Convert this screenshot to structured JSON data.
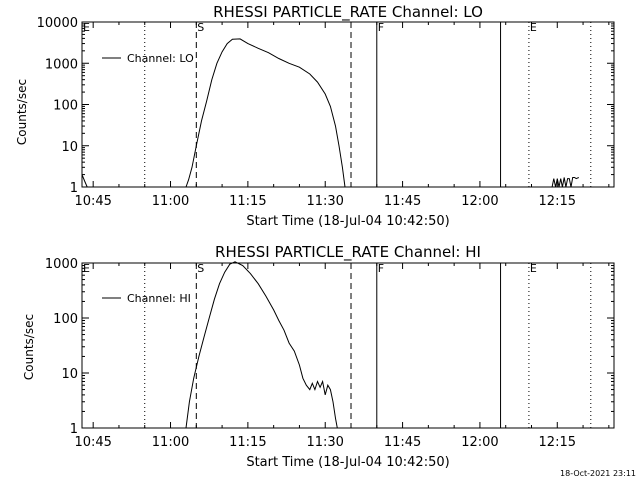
{
  "footer": {
    "timestamp": "18-Oct-2021 23:11"
  },
  "colors": {
    "background": "#ffffff",
    "foreground": "#000000"
  },
  "chart_data": [
    {
      "type": "line",
      "title": "RHESSI PARTICLE_RATE Channel: LO",
      "xlabel": "Start Time (18-Jul-04 10:42:50)",
      "ylabel": "Counts/sec",
      "yscale": "log",
      "ylim": [
        1,
        10000
      ],
      "xlim": [
        "10:42:50",
        "12:26:00"
      ],
      "x_ticks": [
        "10:45",
        "11:00",
        "11:15",
        "11:30",
        "11:45",
        "12:00",
        "12:15"
      ],
      "y_ticks": [
        "1",
        "10",
        "100",
        "1000",
        "10000"
      ],
      "legend": {
        "position": "top-left",
        "entries": [
          "Channel: LO"
        ]
      },
      "markers": [
        {
          "label": "E",
          "time": "10:42:50",
          "style": "none"
        },
        {
          "label": "",
          "time": "10:55:00",
          "style": "dotted"
        },
        {
          "label": "S",
          "time": "11:05:00",
          "style": "dashed"
        },
        {
          "label": "",
          "time": "11:35:00",
          "style": "dashed"
        },
        {
          "label": "F",
          "time": "11:40:00",
          "style": "solid"
        },
        {
          "label": "",
          "time": "12:04:00",
          "style": "solid"
        },
        {
          "label": "E",
          "time": "12:09:30",
          "style": "dotted"
        },
        {
          "label": "",
          "time": "12:21:30",
          "style": "dotted"
        }
      ],
      "series": [
        {
          "points": [
            [
              "10:42:50",
              2
            ],
            [
              "10:43:20",
              1.4
            ],
            [
              "10:43:50",
              1
            ],
            [
              "11:03:00",
              1
            ],
            [
              "11:03:30",
              1.5
            ],
            [
              "11:04:10",
              3
            ],
            [
              "11:05:00",
              10
            ],
            [
              "11:06:00",
              40
            ],
            [
              "11:07:00",
              120
            ],
            [
              "11:08:00",
              400
            ],
            [
              "11:09:00",
              1000
            ],
            [
              "11:10:00",
              1900
            ],
            [
              "11:11:00",
              3000
            ],
            [
              "11:12:00",
              3800
            ],
            [
              "11:13:30",
              3900
            ],
            [
              "11:15:00",
              3000
            ],
            [
              "11:17:00",
              2300
            ],
            [
              "11:19:00",
              1800
            ],
            [
              "11:21:00",
              1300
            ],
            [
              "11:23:00",
              1000
            ],
            [
              "11:25:00",
              800
            ],
            [
              "11:27:00",
              550
            ],
            [
              "11:28:30",
              350
            ],
            [
              "11:30:00",
              180
            ],
            [
              "11:31:00",
              90
            ],
            [
              "11:32:00",
              30
            ],
            [
              "11:32:40",
              10
            ],
            [
              "11:33:20",
              3
            ],
            [
              "11:33:50",
              1
            ],
            null,
            [
              "12:14:00",
              1
            ],
            [
              "12:14:20",
              1.6
            ],
            [
              "12:14:40",
              1
            ],
            [
              "12:15:00",
              1.6
            ],
            [
              "12:15:20",
              1
            ],
            [
              "12:15:40",
              1.6
            ],
            [
              "12:16:00",
              1
            ],
            [
              "12:16:20",
              1.7
            ],
            [
              "12:16:40",
              1
            ],
            [
              "12:17:00",
              1.6
            ],
            [
              "12:17:20",
              1.6
            ],
            [
              "12:17:40",
              1
            ],
            [
              "12:18:00",
              1.7
            ],
            [
              "12:18:20",
              1.7
            ],
            [
              "12:18:40",
              1.6
            ],
            [
              "12:19:10",
              1.7
            ]
          ]
        }
      ]
    },
    {
      "type": "line",
      "title": "RHESSI PARTICLE_RATE Channel: HI",
      "xlabel": "Start Time (18-Jul-04 10:42:50)",
      "ylabel": "Counts/sec",
      "yscale": "log",
      "ylim": [
        1,
        1000
      ],
      "xlim": [
        "10:42:50",
        "12:26:00"
      ],
      "x_ticks": [
        "10:45",
        "11:00",
        "11:15",
        "11:30",
        "11:45",
        "12:00",
        "12:15"
      ],
      "y_ticks": [
        "1",
        "10",
        "100",
        "1000"
      ],
      "legend": {
        "position": "top-left",
        "entries": [
          "Channel: HI"
        ]
      },
      "markers": [
        {
          "label": "E",
          "time": "10:42:50",
          "style": "none"
        },
        {
          "label": "",
          "time": "10:55:00",
          "style": "dotted"
        },
        {
          "label": "S",
          "time": "11:05:00",
          "style": "dashed"
        },
        {
          "label": "",
          "time": "11:35:00",
          "style": "dashed"
        },
        {
          "label": "F",
          "time": "11:40:00",
          "style": "solid"
        },
        {
          "label": "",
          "time": "12:04:00",
          "style": "solid"
        },
        {
          "label": "E",
          "time": "12:09:30",
          "style": "dotted"
        },
        {
          "label": "",
          "time": "12:21:30",
          "style": "dotted"
        }
      ],
      "series": [
        {
          "points": [
            [
              "11:03:00",
              1
            ],
            [
              "11:03:40",
              3
            ],
            [
              "11:04:30",
              8
            ],
            [
              "11:05:30",
              20
            ],
            [
              "11:06:30",
              45
            ],
            [
              "11:07:30",
              100
            ],
            [
              "11:08:30",
              220
            ],
            [
              "11:09:30",
              420
            ],
            [
              "11:10:30",
              680
            ],
            [
              "11:11:30",
              950
            ],
            [
              "11:12:30",
              1050
            ],
            [
              "11:14:00",
              900
            ],
            [
              "11:15:30",
              640
            ],
            [
              "11:17:00",
              420
            ],
            [
              "11:18:30",
              250
            ],
            [
              "11:20:00",
              140
            ],
            [
              "11:21:00",
              90
            ],
            [
              "11:22:00",
              60
            ],
            [
              "11:23:00",
              35
            ],
            [
              "11:24:00",
              25
            ],
            [
              "11:25:00",
              14
            ],
            [
              "11:25:40",
              8
            ],
            [
              "11:26:20",
              6
            ],
            [
              "11:27:00",
              5
            ],
            [
              "11:27:30",
              6.5
            ],
            [
              "11:28:00",
              5
            ],
            [
              "11:28:30",
              7
            ],
            [
              "11:29:00",
              5.5
            ],
            [
              "11:29:30",
              7
            ],
            [
              "11:30:00",
              4
            ],
            [
              "11:30:30",
              6
            ],
            [
              "11:31:00",
              5
            ],
            [
              "11:31:30",
              3
            ],
            [
              "11:32:00",
              1.5
            ],
            [
              "11:32:20",
              1
            ]
          ]
        }
      ]
    }
  ]
}
